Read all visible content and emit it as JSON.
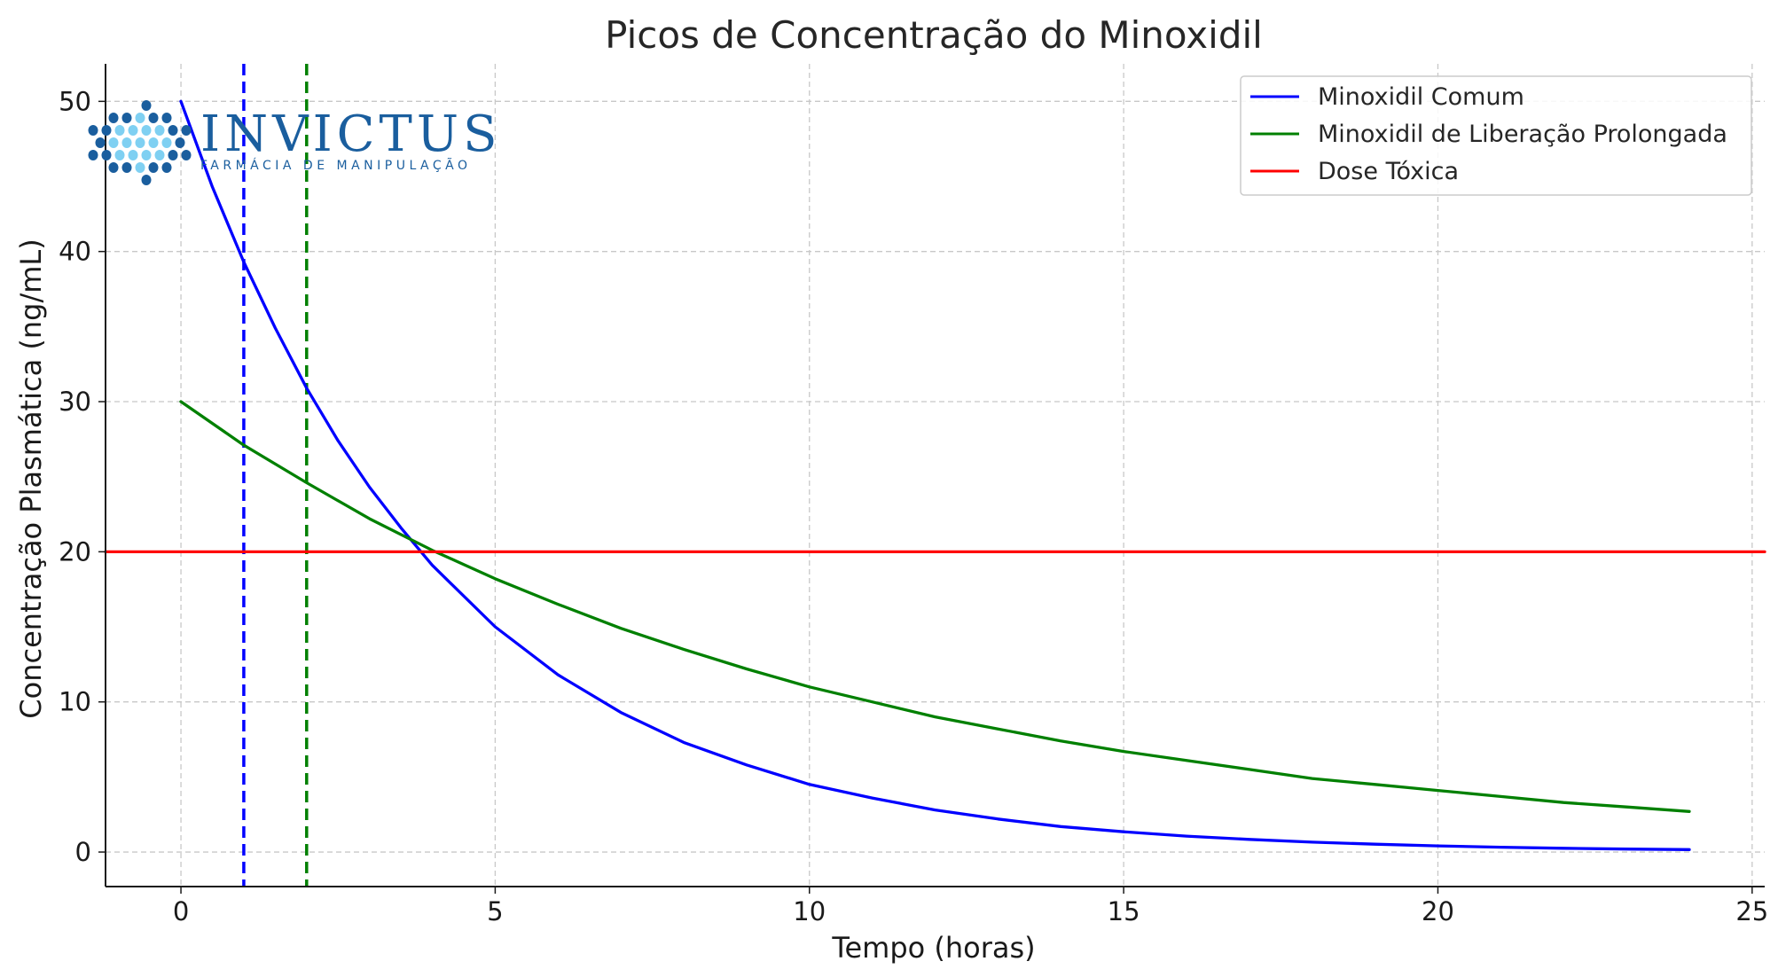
{
  "chart_data": {
    "type": "line",
    "title": "Picos de Concentração do Minoxidil",
    "xlabel": "Tempo (horas)",
    "ylabel": "Concentração Plasmática (ng/mL)",
    "xlim": [
      -1.2,
      25.2
    ],
    "ylim": [
      -2.3,
      52.5
    ],
    "xticks": [
      0,
      5,
      10,
      15,
      20,
      25
    ],
    "yticks": [
      0,
      10,
      20,
      30,
      40,
      50
    ],
    "grid": true,
    "legend_position": "top-right",
    "series": [
      {
        "name": "Minoxidil Comum",
        "color": "#0000ff",
        "x": [
          0,
          0.5,
          1,
          1.5,
          2,
          2.5,
          3,
          3.5,
          4,
          5,
          6,
          7,
          8,
          9,
          10,
          11,
          12,
          13,
          14,
          15,
          16,
          17,
          18,
          19,
          20,
          21,
          22,
          23,
          24
        ],
        "y": [
          50,
          44.3,
          39.3,
          34.9,
          30.9,
          27.4,
          24.3,
          21.6,
          19.1,
          15.0,
          11.8,
          9.3,
          7.3,
          5.8,
          4.5,
          3.6,
          2.8,
          2.2,
          1.7,
          1.35,
          1.06,
          0.84,
          0.66,
          0.52,
          0.41,
          0.32,
          0.25,
          0.2,
          0.16
        ]
      },
      {
        "name": "Minoxidil de Liberação Prolongada",
        "color": "#008000",
        "x": [
          0,
          1,
          2,
          3,
          4,
          5,
          6,
          7,
          8,
          9,
          10,
          11,
          12,
          13,
          14,
          15,
          16,
          17,
          18,
          19,
          20,
          21,
          22,
          23,
          24
        ],
        "y": [
          30,
          27.1,
          24.6,
          22.2,
          20.1,
          18.2,
          16.5,
          14.9,
          13.5,
          12.2,
          11.0,
          10.0,
          9.0,
          8.2,
          7.4,
          6.7,
          6.1,
          5.5,
          4.9,
          4.5,
          4.1,
          3.7,
          3.3,
          3.0,
          2.7
        ]
      },
      {
        "name": "Dose Tóxica",
        "color": "#ff0000",
        "x": [
          -1.2,
          25.2
        ],
        "y": [
          20,
          20
        ]
      }
    ],
    "vlines": [
      {
        "x": 1,
        "color": "#0000ff",
        "style": "dashed"
      },
      {
        "x": 2,
        "color": "#008000",
        "style": "dashed"
      }
    ]
  },
  "logo": {
    "name": "INVICTUS",
    "tagline": "FARMÁCIA DE MANIPULAÇÃO",
    "color": "#1a5e9e",
    "dot_colors": [
      "#1a5e9e",
      "#7fd0f2"
    ]
  }
}
